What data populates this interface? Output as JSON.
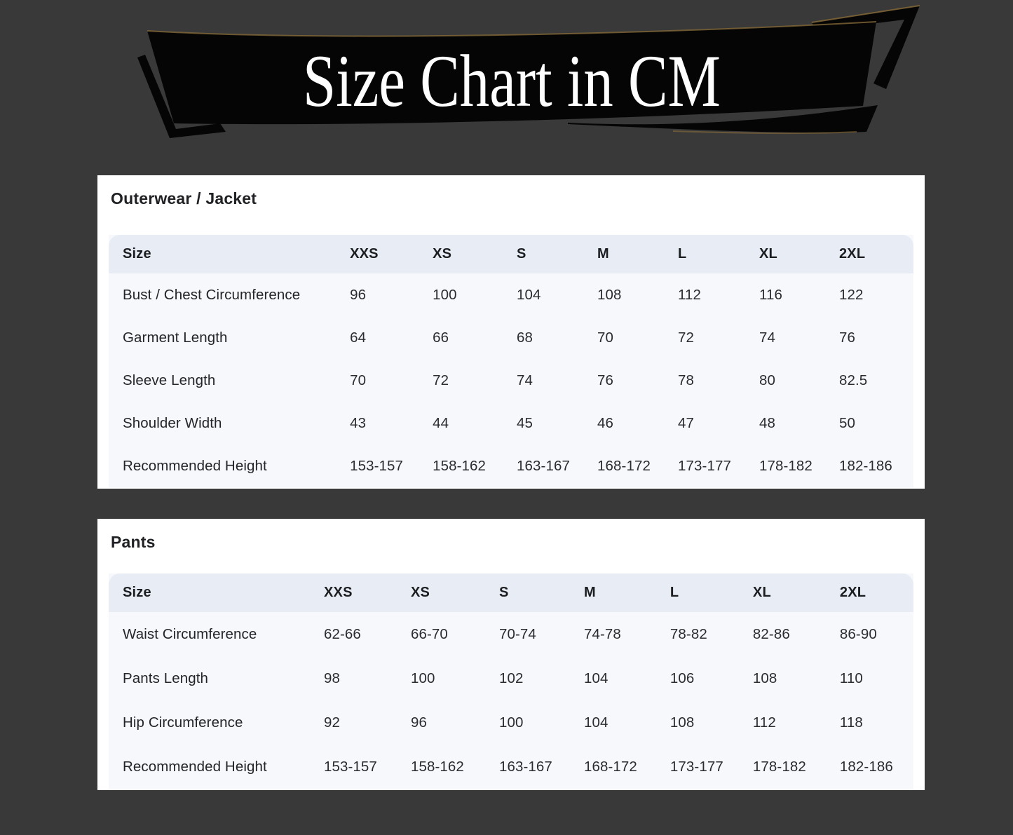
{
  "banner": {
    "title": "Size Chart in CM"
  },
  "cards": [
    {
      "title": "Outerwear / Jacket",
      "columns": [
        "Size",
        "XXS",
        "XS",
        "S",
        "M",
        "L",
        "XL",
        "2XL"
      ],
      "rows": [
        {
          "label": "Bust / Chest Circumference",
          "values": [
            "96",
            "100",
            "104",
            "108",
            "112",
            "116",
            "122"
          ]
        },
        {
          "label": "Garment Length",
          "values": [
            "64",
            "66",
            "68",
            "70",
            "72",
            "74",
            "76"
          ]
        },
        {
          "label": "Sleeve Length",
          "values": [
            "70",
            "72",
            "74",
            "76",
            "78",
            "80",
            "82.5"
          ]
        },
        {
          "label": "Shoulder Width",
          "values": [
            "43",
            "44",
            "45",
            "46",
            "47",
            "48",
            "50"
          ]
        },
        {
          "label": "Recommended Height",
          "values": [
            "153-157",
            "158-162",
            "163-167",
            "168-172",
            "173-177",
            "178-182",
            "182-186"
          ]
        }
      ]
    },
    {
      "title": "Pants",
      "columns": [
        "Size",
        "XXS",
        "XS",
        "S",
        "M",
        "L",
        "XL",
        "2XL"
      ],
      "rows": [
        {
          "label": "Waist Circumference",
          "values": [
            "62-66",
            "66-70",
            "70-74",
            "74-78",
            "78-82",
            "82-86",
            "86-90"
          ]
        },
        {
          "label": "Pants Length",
          "values": [
            "98",
            "100",
            "102",
            "104",
            "106",
            "108",
            "110"
          ]
        },
        {
          "label": "Hip Circumference",
          "values": [
            "92",
            "96",
            "100",
            "104",
            "108",
            "112",
            "118"
          ]
        },
        {
          "label": "Recommended Height",
          "values": [
            "153-157",
            "158-162",
            "163-167",
            "168-172",
            "173-177",
            "178-182",
            "182-186"
          ]
        }
      ]
    }
  ],
  "colors": {
    "page_bg": "#393939",
    "banner_bg": "#050505",
    "banner_text": "#ffffff",
    "banner_gold_accent": "#8a6d3a",
    "card_bg": "#ffffff",
    "header_row_bg": "#e8edf5",
    "table_body_bg": "#f6f8fb",
    "title_text": "#202124",
    "cell_text": "#2a2c30"
  }
}
